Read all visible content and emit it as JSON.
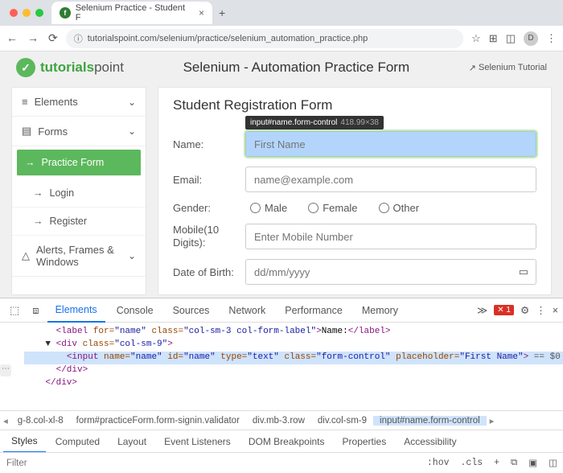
{
  "browser": {
    "tab_title": "Selenium Practice - Student F",
    "url": "tutorialspoint.com/selenium/practice/selenium_automation_practice.php"
  },
  "header": {
    "logo_green": "tutorials",
    "logo_gray": "point",
    "title": "Selenium - Automation Practice Form",
    "link": "Selenium Tutorial"
  },
  "sidebar": {
    "elements": "Elements",
    "forms": "Forms",
    "practice": "Practice Form",
    "login": "Login",
    "register": "Register",
    "alerts": "Alerts, Frames & Windows"
  },
  "form": {
    "heading": "Student Registration Form",
    "tooltip_sel": "input#name.form-control",
    "tooltip_dim": "418.99×38",
    "name_label": "Name:",
    "name_ph": "First Name",
    "email_label": "Email:",
    "email_ph": "name@example.com",
    "gender_label": "Gender:",
    "male": "Male",
    "female": "Female",
    "other": "Other",
    "mobile_label": "Mobile(10 Digits):",
    "mobile_ph": "Enter Mobile Number",
    "dob_label": "Date of Birth:",
    "dob_ph": "dd/mm/yyyy"
  },
  "devtools": {
    "tabs": {
      "elements": "Elements",
      "console": "Console",
      "sources": "Sources",
      "network": "Network",
      "performance": "Performance",
      "memory": "Memory"
    },
    "err_count": "1",
    "code": {
      "l1a": "<label ",
      "l1b": "for=",
      "l1c": "\"name\"",
      "l1d": " class=",
      "l1e": "\"col-sm-3 col-form-label\"",
      "l1f": ">",
      "l1g": "Name:",
      "l1h": "</label>",
      "l2a": "<div ",
      "l2b": "class=",
      "l2c": "\"col-sm-9\"",
      "l2d": ">",
      "l3a": "<input ",
      "l3b": "name=",
      "l3c": "\"name\"",
      "l3d": " id=",
      "l3e": "\"name\"",
      "l3f": " type=",
      "l3g": "\"text\"",
      "l3h": " class=",
      "l3i": "\"form-control\"",
      "l3j": " placeholder=",
      "l3k": "\"First Name\"",
      "l3l": ">",
      "l3m": " == $0",
      "l4": "</div>",
      "l5": "</div>"
    },
    "crumbs": {
      "c1": "g-8.col-xl-8",
      "c2": "form#practiceForm.form-signin.validator",
      "c3": "div.mb-3.row",
      "c4": "div.col-sm-9",
      "c5": "input#name.form-control"
    },
    "styles": {
      "styles": "Styles",
      "computed": "Computed",
      "layout": "Layout",
      "listeners": "Event Listeners",
      "dom": "DOM Breakpoints",
      "props": "Properties",
      "a11y": "Accessibility"
    },
    "filter_ph": "Filter",
    "hov": ":hov",
    "cls": ".cls"
  }
}
